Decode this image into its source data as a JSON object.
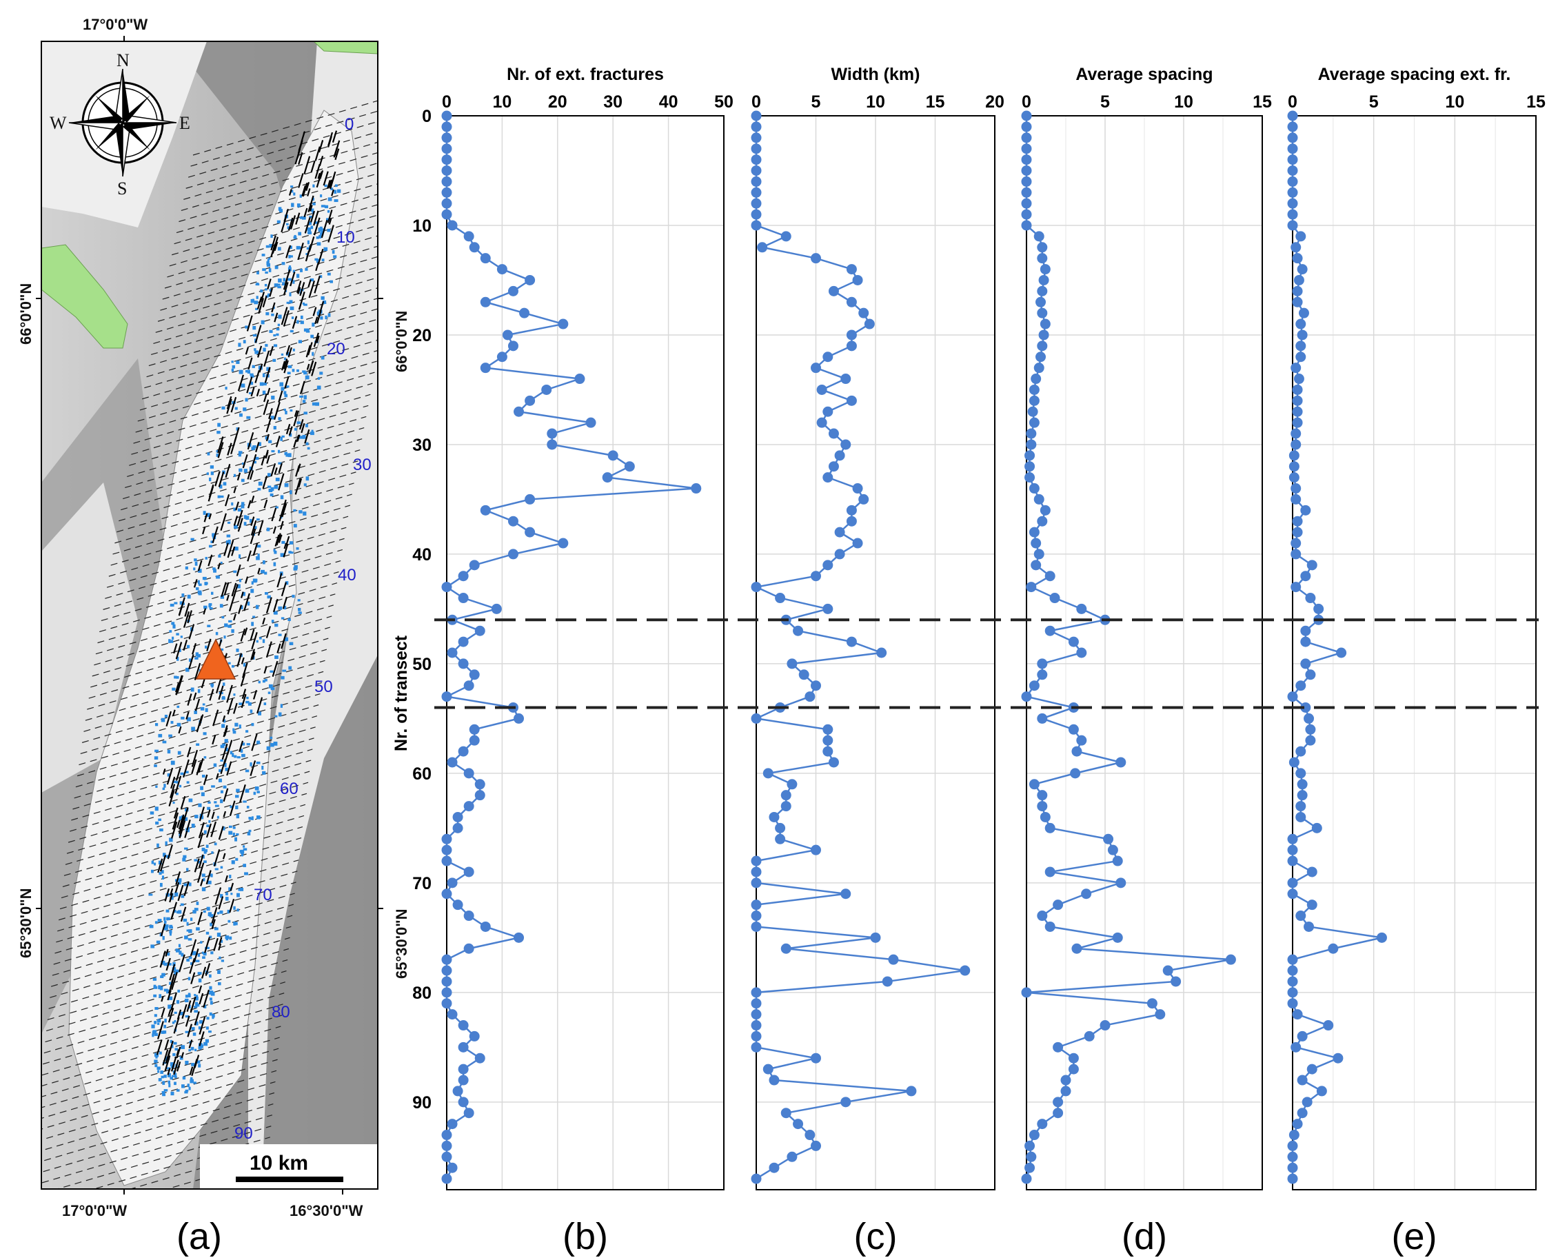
{
  "figure": {
    "y_axis_label": "Nr. of transect",
    "y_ticks": [
      0,
      10,
      20,
      30,
      40,
      50,
      60,
      70,
      80,
      90
    ],
    "lat_label_upper": "66°0'0\"N",
    "lat_label_lower": "65°30'0\"N",
    "dashed_lines_at_transect": [
      46,
      54
    ]
  },
  "map": {
    "panel_letter": "(a)",
    "top_label": "17°0'0\"W",
    "bottom_left_label": "17°0'0\"W",
    "bottom_right_label": "16°30'0\"W",
    "lat_label_upper": "66°0'0\"N",
    "lat_label_lower": "65°30'0\"N",
    "scale_bar_label": "10 km",
    "compass": {
      "n": "N",
      "s": "S",
      "e": "E",
      "w": "W"
    },
    "transect_labels": [
      "0",
      "10",
      "20",
      "30",
      "40",
      "50",
      "60",
      "70",
      "80",
      "90"
    ],
    "marker_color": "#f0641e",
    "fracture_colors": {
      "black": "#000000",
      "blue": "#2c8be0"
    },
    "zone_colors": {
      "light": "#e9e9e9",
      "dark": "#8f8f8f",
      "green": "#a6e08a"
    }
  },
  "chart_data": [
    {
      "type": "line",
      "panel_letter": "(b)",
      "title": "Nr. of ext. fractures",
      "x_ticks": [
        "0",
        "10",
        "20",
        "30",
        "40",
        "50"
      ],
      "xlim": [
        0,
        50
      ],
      "ylim": [
        0,
        98
      ],
      "ylabel": "Nr. of transect",
      "color": "#4a7fcf",
      "y": [
        0,
        1,
        2,
        3,
        4,
        5,
        6,
        7,
        8,
        9,
        10,
        11,
        12,
        13,
        14,
        15,
        16,
        17,
        18,
        19,
        20,
        21,
        22,
        23,
        24,
        25,
        26,
        27,
        28,
        29,
        30,
        31,
        32,
        33,
        34,
        35,
        36,
        37,
        38,
        39,
        40,
        41,
        42,
        43,
        44,
        45,
        46,
        47,
        48,
        49,
        50,
        51,
        52,
        53,
        54,
        55,
        56,
        57,
        58,
        59,
        60,
        61,
        62,
        63,
        64,
        65,
        66,
        67,
        68,
        69,
        70,
        71,
        72,
        73,
        74,
        75,
        76,
        77,
        78,
        79,
        80,
        81,
        82,
        83,
        84,
        85,
        86,
        87,
        88,
        89,
        90,
        91,
        92,
        93,
        94,
        95,
        96,
        97
      ],
      "x": [
        0,
        0,
        0,
        0,
        0,
        0,
        0,
        0,
        0,
        0,
        1,
        4,
        5,
        7,
        10,
        15,
        12,
        7,
        14,
        21,
        11,
        12,
        10,
        7,
        24,
        18,
        15,
        13,
        26,
        19,
        19,
        30,
        33,
        29,
        45,
        15,
        7,
        12,
        15,
        21,
        12,
        5,
        3,
        0,
        3,
        9,
        1,
        6,
        3,
        1,
        3,
        5,
        4,
        0,
        12,
        13,
        5,
        5,
        3,
        1,
        4,
        6,
        6,
        4,
        2,
        2,
        0,
        0,
        0,
        4,
        1,
        0,
        2,
        4,
        7,
        13,
        4,
        0,
        0,
        0,
        0,
        0,
        1,
        3,
        5,
        3,
        6,
        3,
        3,
        2,
        3,
        4,
        1,
        0,
        0,
        0,
        1,
        0
      ]
    },
    {
      "type": "line",
      "panel_letter": "(c)",
      "title": "Width (km)",
      "x_ticks": [
        "0",
        "5",
        "10",
        "15",
        "20"
      ],
      "xlim": [
        0,
        20
      ],
      "ylim": [
        0,
        98
      ],
      "color": "#4a7fcf",
      "y": [
        0,
        1,
        2,
        3,
        4,
        5,
        6,
        7,
        8,
        9,
        10,
        11,
        12,
        13,
        14,
        15,
        16,
        17,
        18,
        19,
        20,
        21,
        22,
        23,
        24,
        25,
        26,
        27,
        28,
        29,
        30,
        31,
        32,
        33,
        34,
        35,
        36,
        37,
        38,
        39,
        40,
        41,
        42,
        43,
        44,
        45,
        46,
        47,
        48,
        49,
        50,
        51,
        52,
        53,
        54,
        55,
        56,
        57,
        58,
        59,
        60,
        61,
        62,
        63,
        64,
        65,
        66,
        67,
        68,
        69,
        70,
        71,
        72,
        73,
        74,
        75,
        76,
        77,
        78,
        79,
        80,
        81,
        82,
        83,
        84,
        85,
        86,
        87,
        88,
        89,
        90,
        91,
        92,
        93,
        94,
        95,
        96,
        97
      ],
      "x": [
        0,
        0,
        0,
        0,
        0,
        0,
        0,
        0,
        0,
        0,
        0,
        2.5,
        0.5,
        5,
        8,
        8.5,
        6.5,
        8,
        9,
        9.5,
        8,
        8,
        6,
        5,
        7.5,
        5.5,
        8,
        6,
        5.5,
        6.5,
        7.5,
        7,
        6.5,
        6,
        8.5,
        9,
        8,
        8,
        7,
        8.5,
        7,
        6,
        5,
        0,
        2,
        6,
        2.5,
        3.5,
        8,
        10.5,
        3,
        4,
        5,
        4.5,
        2,
        0,
        6,
        6,
        6,
        6.5,
        1,
        3,
        2.5,
        2.5,
        1.5,
        2,
        2,
        5,
        0,
        0,
        0,
        7.5,
        0,
        0,
        0,
        10,
        2.5,
        11.5,
        17.5,
        11,
        0,
        0,
        0,
        0,
        0,
        0,
        5,
        1,
        1.5,
        13,
        7.5,
        2.5,
        3.5,
        4.5,
        5,
        3,
        1.5,
        0
      ]
    },
    {
      "type": "line",
      "panel_letter": "(d)",
      "title": "Average spacing",
      "x_ticks": [
        "0",
        "5",
        "10",
        "15"
      ],
      "xlim": [
        0,
        15
      ],
      "ylim": [
        0,
        98
      ],
      "color": "#4a7fcf",
      "y": [
        0,
        1,
        2,
        3,
        4,
        5,
        6,
        7,
        8,
        9,
        10,
        11,
        12,
        13,
        14,
        15,
        16,
        17,
        18,
        19,
        20,
        21,
        22,
        23,
        24,
        25,
        26,
        27,
        28,
        29,
        30,
        31,
        32,
        33,
        34,
        35,
        36,
        37,
        38,
        39,
        40,
        41,
        42,
        43,
        44,
        45,
        46,
        47,
        48,
        49,
        50,
        51,
        52,
        53,
        54,
        55,
        56,
        57,
        58,
        59,
        60,
        61,
        62,
        63,
        64,
        65,
        66,
        67,
        68,
        69,
        70,
        71,
        72,
        73,
        74,
        75,
        76,
        77,
        78,
        79,
        80,
        81,
        82,
        83,
        84,
        85,
        86,
        87,
        88,
        89,
        90,
        91,
        92,
        93,
        94,
        95,
        96,
        97
      ],
      "x": [
        0,
        0,
        0,
        0,
        0,
        0,
        0,
        0,
        0,
        0,
        0,
        0.8,
        1,
        1,
        1.2,
        1.1,
        1,
        0.9,
        1,
        1.2,
        1.1,
        1,
        0.9,
        0.8,
        0.6,
        0.5,
        0.5,
        0.4,
        0.5,
        0.3,
        0.3,
        0.2,
        0.2,
        0.2,
        0.5,
        0.8,
        1.2,
        1,
        0.5,
        0.6,
        0.8,
        0.6,
        1.5,
        0.3,
        1.8,
        3.5,
        5,
        1.5,
        3,
        3.5,
        1,
        1,
        0.5,
        0,
        3,
        1,
        3,
        3.5,
        3.2,
        6,
        3.1,
        0.5,
        1,
        1,
        1.2,
        1.5,
        5.2,
        5.5,
        5.8,
        1.5,
        6,
        3.8,
        2,
        1,
        1.5,
        5.8,
        3.2,
        13,
        9,
        9.5,
        0,
        8,
        8.5,
        5,
        4,
        2,
        3,
        3,
        2.5,
        2.5,
        2,
        2,
        1,
        0.5,
        0.2,
        0.3,
        0.2,
        0
      ]
    },
    {
      "type": "line",
      "panel_letter": "(e)",
      "title": "Average spacing ext. fr.",
      "x_ticks": [
        "0",
        "5",
        "10",
        "15"
      ],
      "xlim": [
        0,
        15
      ],
      "ylim": [
        0,
        98
      ],
      "color": "#4a7fcf",
      "y": [
        0,
        1,
        2,
        3,
        4,
        5,
        6,
        7,
        8,
        9,
        10,
        11,
        12,
        13,
        14,
        15,
        16,
        17,
        18,
        19,
        20,
        21,
        22,
        23,
        24,
        25,
        26,
        27,
        28,
        29,
        30,
        31,
        32,
        33,
        34,
        35,
        36,
        37,
        38,
        39,
        40,
        41,
        42,
        43,
        44,
        45,
        46,
        47,
        48,
        49,
        50,
        51,
        52,
        53,
        54,
        55,
        56,
        57,
        58,
        59,
        60,
        61,
        62,
        63,
        64,
        65,
        66,
        67,
        68,
        69,
        70,
        71,
        72,
        73,
        74,
        75,
        76,
        77,
        78,
        79,
        80,
        81,
        82,
        83,
        84,
        85,
        86,
        87,
        88,
        89,
        90,
        91,
        92,
        93,
        94,
        95,
        96,
        97
      ],
      "x": [
        0,
        0,
        0,
        0,
        0,
        0,
        0,
        0,
        0,
        0,
        0,
        0.5,
        0.2,
        0.3,
        0.6,
        0.4,
        0.3,
        0.3,
        0.7,
        0.5,
        0.6,
        0.5,
        0.5,
        0.2,
        0.4,
        0.3,
        0.3,
        0.3,
        0.3,
        0.2,
        0.2,
        0.1,
        0.1,
        0.1,
        0.2,
        0.2,
        0.8,
        0.3,
        0.3,
        0.2,
        0.2,
        1.2,
        0.8,
        0.2,
        1.1,
        1.6,
        1.6,
        0.8,
        0.8,
        3,
        0.8,
        1.1,
        0.5,
        0,
        0.8,
        1,
        1.1,
        1.1,
        0.5,
        0.1,
        0.5,
        0.6,
        0.6,
        0.5,
        0.5,
        1.5,
        0,
        0,
        0,
        1.2,
        0,
        0,
        1.2,
        0.5,
        1,
        5.5,
        2.5,
        0,
        0,
        0,
        0,
        0,
        0.3,
        2.2,
        0.6,
        0.2,
        2.8,
        1.2,
        0.6,
        1.8,
        0.9,
        0.6,
        0.3,
        0.1,
        0,
        0,
        0,
        0
      ]
    }
  ]
}
